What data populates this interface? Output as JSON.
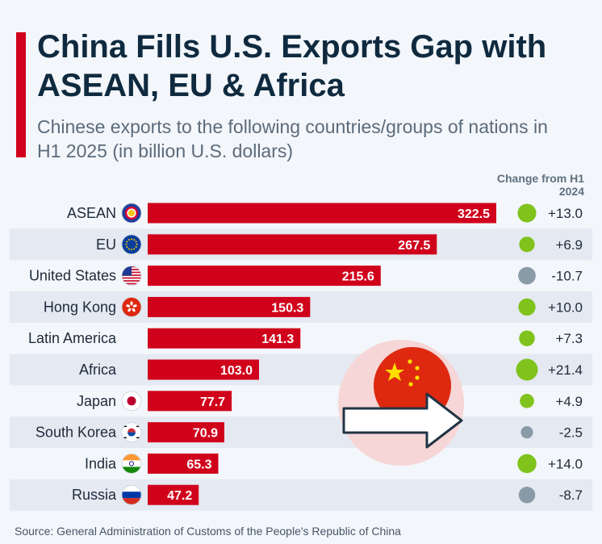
{
  "title": "China Fills U.S. Exports Gap with ASEAN, EU & Africa",
  "subtitle": "Chinese exports to the following countries/groups of nations in H1 2025 (in billion U.S. dollars)",
  "change_header": "Change from H1 2024",
  "source": "Source: General Administration of Customs of the People's Republic of China",
  "colors": {
    "bar": "#d0021b",
    "positive": "#7fc31c",
    "negative": "#8a9ba8",
    "row_stripe": "#e4e9f2"
  },
  "chart_data": {
    "type": "bar",
    "orientation": "horizontal",
    "categories": [
      "ASEAN",
      "EU",
      "United States",
      "Hong Kong",
      "Latin America",
      "Africa",
      "Japan",
      "South Korea",
      "India",
      "Russia"
    ],
    "values": [
      322.5,
      267.5,
      215.6,
      150.3,
      141.3,
      103.0,
      77.7,
      70.9,
      65.3,
      47.2
    ],
    "value_labels": [
      "322.5",
      "267.5",
      "215.6",
      "150.3",
      "141.3",
      "103.0",
      "77.7",
      "70.9",
      "65.3",
      "47.2"
    ],
    "change_values": [
      13.0,
      6.9,
      -10.7,
      10.0,
      7.3,
      21.4,
      4.9,
      -2.5,
      14.0,
      -8.7
    ],
    "change_labels": [
      "+13.0",
      "+6.9",
      "-10.7",
      "+10.0",
      "+7.3",
      "+21.4",
      "+4.9",
      "-2.5",
      "+14.0",
      "-8.7"
    ],
    "flag_icons": [
      "asean-emblem-icon",
      "eu-flag-icon",
      "us-flag-icon",
      "hong-kong-flag-icon",
      "",
      "",
      "japan-flag-icon",
      "south-korea-flag-icon",
      "india-flag-icon",
      "russia-flag-icon"
    ],
    "xlim": [
      0,
      322.5
    ],
    "grid": false,
    "legend": "none"
  }
}
